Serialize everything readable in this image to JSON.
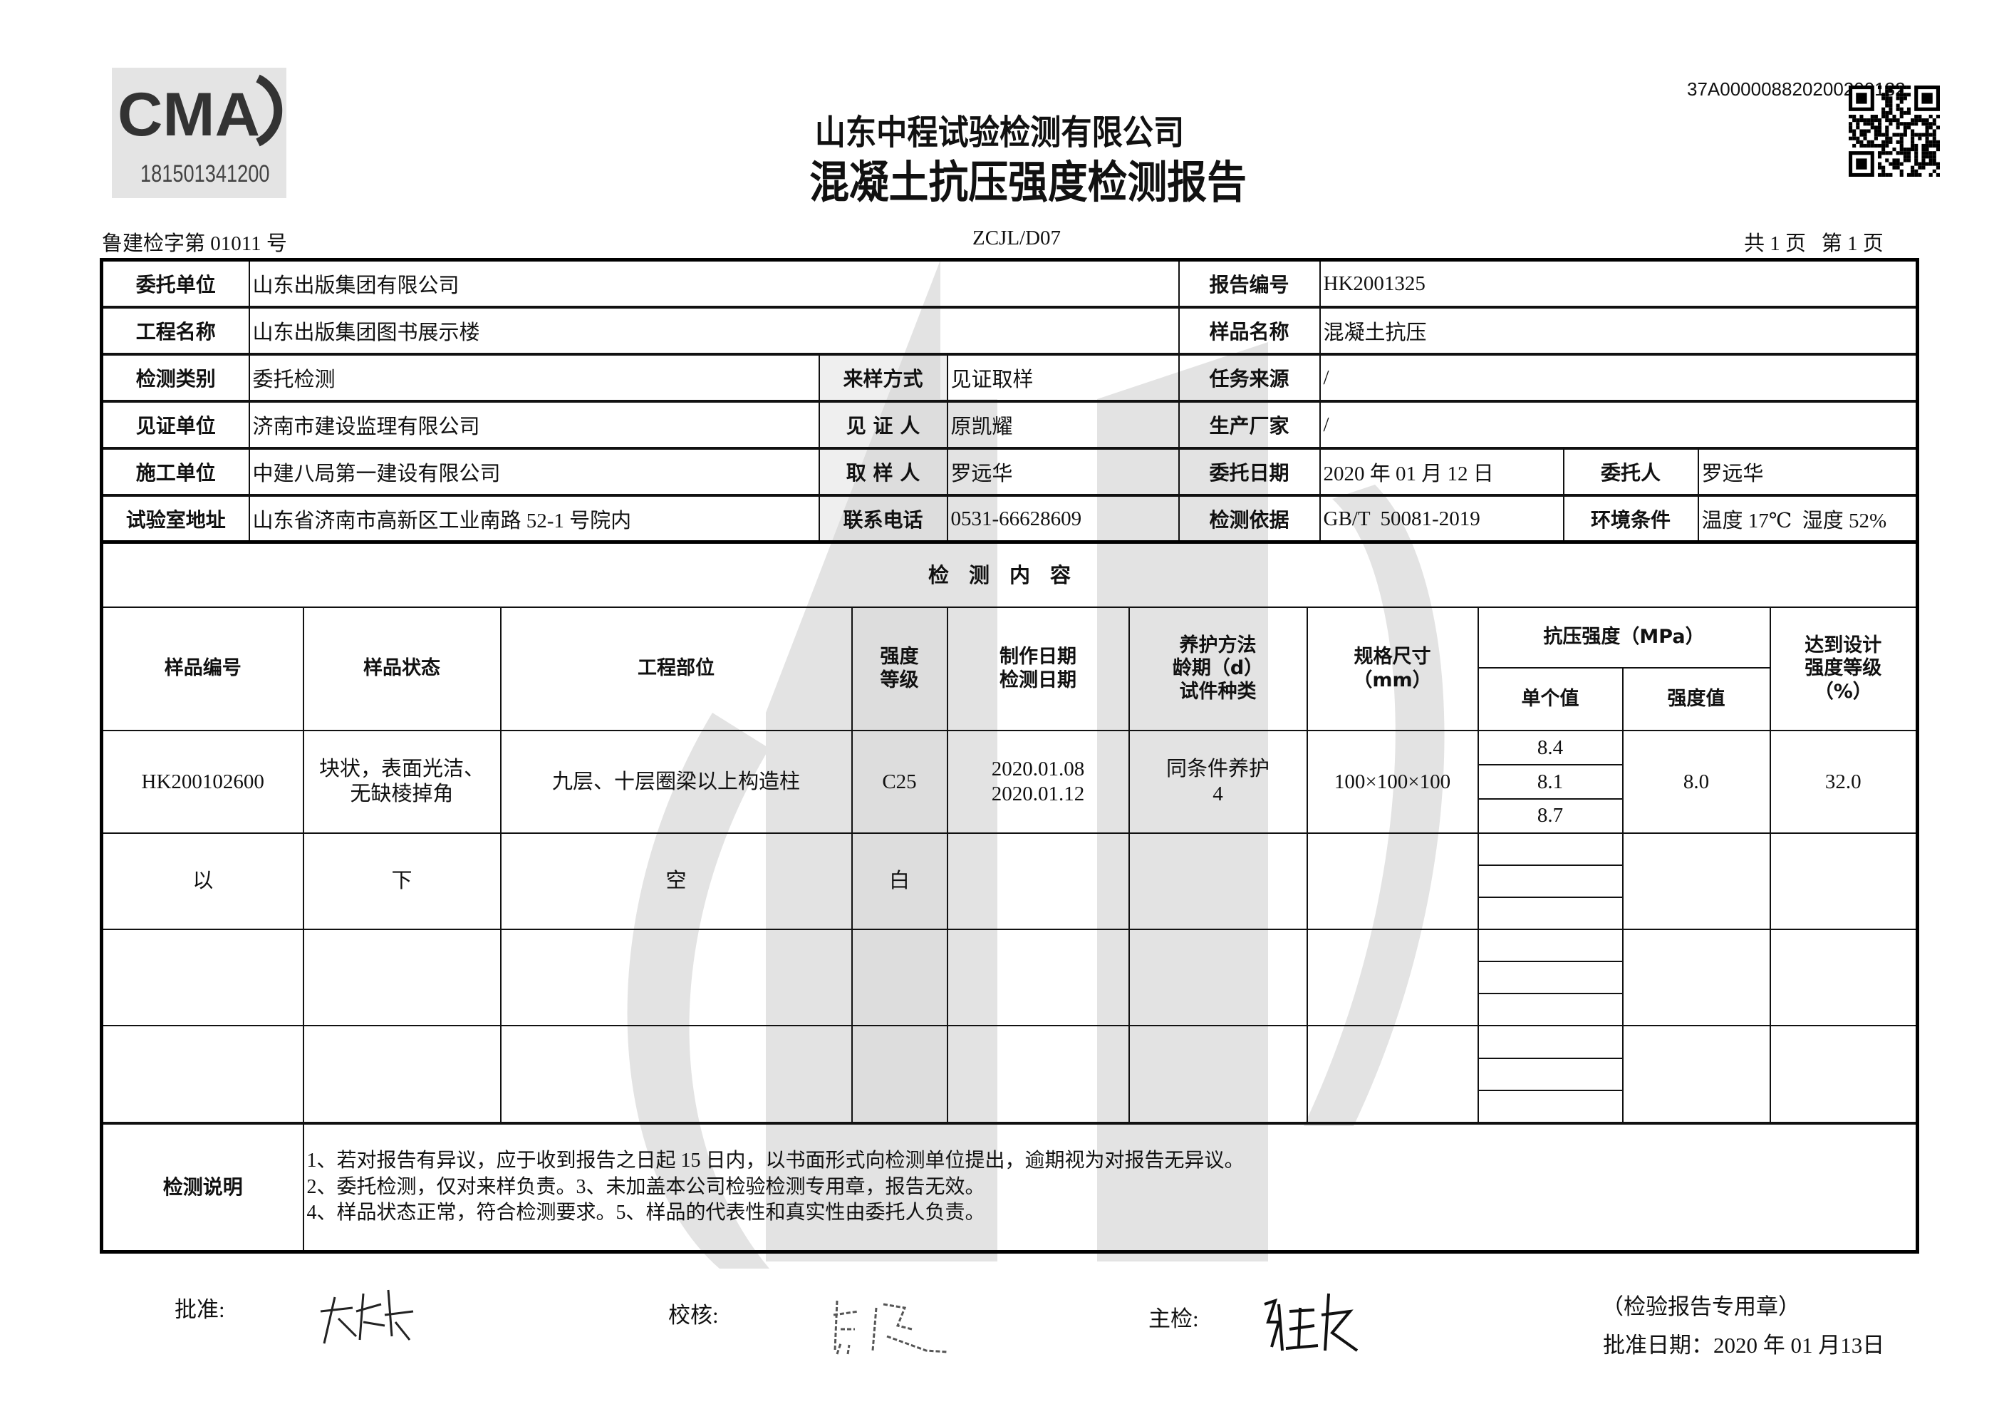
{
  "header": {
    "ma_logo_text": "CMA",
    "ma_number": "181501341200",
    "company": "山东中程试验检测有限公司",
    "title": "混凝土抗压强度检测报告",
    "qr_number": "37A000008820200200132",
    "license": "鲁建检字第 01011 号",
    "form_code": "ZCJL/D07",
    "pages": "共 1 页   第 1 页"
  },
  "info": {
    "client_label": "委托单位",
    "client": "山东出版集团有限公司",
    "report_no_label": "报告编号",
    "report_no": "HK2001325",
    "project_label": "工程名称",
    "project": "山东出版集团图书展示楼",
    "sample_name_label": "样品名称",
    "sample_name": "混凝土抗压",
    "test_type_label": "检测类别",
    "test_type": "委托检测",
    "sampling_method_label": "来样方式",
    "sampling_method": "见证取样",
    "task_source_label": "任务来源",
    "task_source": "/",
    "witness_unit_label": "见证单位",
    "witness_unit": "济南市建设监理有限公司",
    "witness_label": "见 证 人",
    "witness": "原凯耀",
    "manufacturer_label": "生产厂家",
    "manufacturer": "/",
    "builder_label": "施工单位",
    "builder": "中建八局第一建设有限公司",
    "sampler_label": "取 样 人",
    "sampler": "罗远华",
    "entrust_date_label": "委托日期",
    "entrust_date": "2020 年 01 月 12 日",
    "entruster_label": "委托人",
    "entruster": "罗远华",
    "lab_address_label": "试验室地址",
    "lab_address": "山东省济南市高新区工业南路 52-1 号院内",
    "phone_label": "联系电话",
    "phone": "0531-66628609",
    "standard_label": "检测依据",
    "standard": "GB/T  50081-2019",
    "env_label": "环境条件",
    "env": "温度 17℃  湿度 52%"
  },
  "content": {
    "section_title": "检测内容",
    "headers": {
      "sample_no": "样品编号",
      "sample_state": "样品状态",
      "location": "工程部位",
      "grade": "强度等级",
      "dates": "制作日期 检测日期",
      "curing": "养护方法 龄期（d） 试件种类",
      "size": "规格尺寸 （mm）",
      "strength": "抗压强度（MPa）",
      "single": "单个值",
      "rep": "强度值",
      "percent": "达到设计 强度等级 （%）"
    },
    "row": {
      "sample_no": "HK200102600",
      "sample_state": "块状，表面光洁、无缺棱掉角",
      "location": "九层、十层圈梁以上构造柱",
      "grade": "C25",
      "make_date": "2020.01.08",
      "test_date": "2020.01.12",
      "curing": "同条件养护",
      "age": "4",
      "size": "100×100×100",
      "singles": [
        "8.4",
        "8.1",
        "8.7"
      ],
      "rep": "8.0",
      "percent": "32.0"
    },
    "blank_marks": [
      "以",
      "下",
      "空",
      "白"
    ],
    "notes_label": "检测说明",
    "notes": [
      "1、若对报告有异议，应于收到报告之日起 15 日内，以书面形式向检测单位提出，逾期视为对报告无异议。",
      "2、委托检测，仅对来样负责。3、未加盖本公司检验检测专用章，报告无效。",
      "4、样品状态正常，符合检测要求。5、样品的代表性和真实性由委托人负责。"
    ]
  },
  "footer": {
    "approve_label": "批准:",
    "review_label": "校核:",
    "inspector_label": "主检:",
    "seal_note": "（检验报告专用章）",
    "approve_date": "批准日期：2020 年 01 月13日"
  }
}
